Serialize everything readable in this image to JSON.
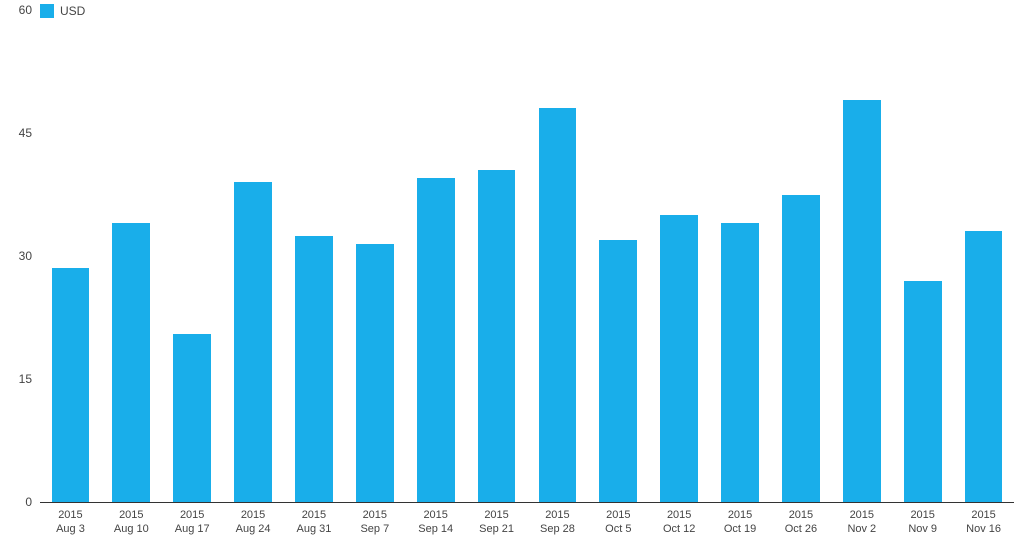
{
  "chart": {
    "type": "bar",
    "legend": {
      "label": "USD",
      "swatch_color": "#19aeea"
    },
    "bar_color": "#19aeea",
    "background_color": "#ffffff",
    "axis_color": "#333333",
    "tick_label_color": "#444444",
    "tick_fontsize_px": 12,
    "xtick_fontsize_px": 11,
    "ylim": [
      0,
      60
    ],
    "ytick_step": 15,
    "yticks": [
      0,
      15,
      30,
      45,
      60
    ],
    "bar_width_ratio": 0.62,
    "series": [
      {
        "year": "2015",
        "label": "Aug 3",
        "value": 28.5
      },
      {
        "year": "2015",
        "label": "Aug 10",
        "value": 34.0
      },
      {
        "year": "2015",
        "label": "Aug 17",
        "value": 20.5
      },
      {
        "year": "2015",
        "label": "Aug 24",
        "value": 39.0
      },
      {
        "year": "2015",
        "label": "Aug 31",
        "value": 32.5
      },
      {
        "year": "2015",
        "label": "Sep 7",
        "value": 31.5
      },
      {
        "year": "2015",
        "label": "Sep 14",
        "value": 39.5
      },
      {
        "year": "2015",
        "label": "Sep 21",
        "value": 40.5
      },
      {
        "year": "2015",
        "label": "Sep 28",
        "value": 48.0
      },
      {
        "year": "2015",
        "label": "Oct 5",
        "value": 32.0
      },
      {
        "year": "2015",
        "label": "Oct 12",
        "value": 35.0
      },
      {
        "year": "2015",
        "label": "Oct 19",
        "value": 34.0
      },
      {
        "year": "2015",
        "label": "Oct 26",
        "value": 37.5
      },
      {
        "year": "2015",
        "label": "Nov 2",
        "value": 49.0
      },
      {
        "year": "2015",
        "label": "Nov 9",
        "value": 27.0
      },
      {
        "year": "2015",
        "label": "Nov 16",
        "value": 33.0
      }
    ]
  }
}
